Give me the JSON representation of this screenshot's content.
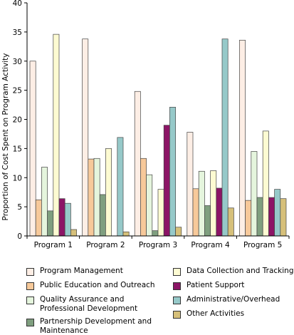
{
  "chart_data": {
    "type": "bar",
    "title": "",
    "xlabel": "",
    "ylabel": "Proportion of Cost Spent on Program Activity",
    "ylim": [
      0,
      40
    ],
    "yticks": [
      0,
      5,
      10,
      15,
      20,
      25,
      30,
      35,
      40
    ],
    "grid": false,
    "legend_position": "bottom",
    "categories": [
      "Program 1",
      "Program 2",
      "Program 3",
      "Program 4",
      "Program 5"
    ],
    "series": [
      {
        "name": "Program Management",
        "color": "#fdeee5",
        "values": [
          30,
          33.8,
          24.8,
          17.8,
          33.6
        ]
      },
      {
        "name": "Public Education and Outreach",
        "color": "#f7c99a",
        "values": [
          6.2,
          13.2,
          13.3,
          8.1,
          6.1
        ]
      },
      {
        "name": "Quality Assurance and Professional Development",
        "color": "#e5f5dd",
        "values": [
          11.8,
          13.3,
          10.5,
          11.1,
          14.5
        ]
      },
      {
        "name": "Partnership Development and Maintenance",
        "color": "#7f9f7f",
        "values": [
          4.3,
          7.1,
          0.9,
          5.2,
          6.6
        ]
      },
      {
        "name": "Data Collection and Tracking",
        "color": "#fdfbd2",
        "values": [
          34.6,
          15,
          8,
          11.2,
          18
        ]
      },
      {
        "name": "Patient Support",
        "color": "#8c1566",
        "values": [
          6.4,
          0,
          19,
          8.2,
          6.6
        ]
      },
      {
        "name": "Administrative/Overhead",
        "color": "#96c9c9",
        "values": [
          5.6,
          16.9,
          22.1,
          33.8,
          8
        ]
      },
      {
        "name": "Other Activities",
        "color": "#d6c07a",
        "values": [
          1.1,
          0.7,
          1.5,
          4.8,
          6.4
        ]
      }
    ]
  }
}
